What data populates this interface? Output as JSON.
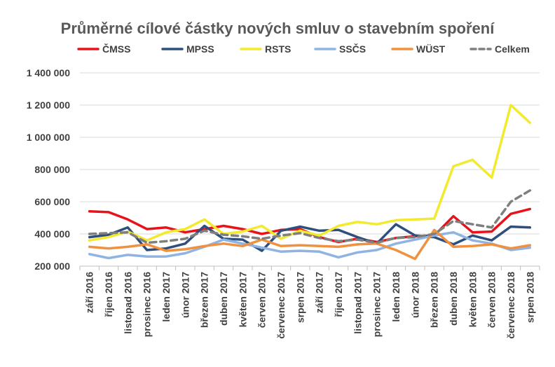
{
  "chart_data": {
    "type": "line",
    "title": "Průměrné cílové částky nových smluv o stavebním spoření",
    "xlabel": "",
    "ylabel": "",
    "ylim": [
      200000,
      1400000
    ],
    "yticks": [
      200000,
      400000,
      600000,
      800000,
      1000000,
      1200000,
      1400000
    ],
    "ytick_labels": [
      "200 000",
      "400 000",
      "600 000",
      "800 000",
      "1 000 000",
      "1 200 000",
      "1 400 000"
    ],
    "grid": true,
    "legend_position": "top",
    "categories": [
      "září 2016",
      "říjen 2016",
      "listopad 2016",
      "prosinec 2016",
      "leden 2017",
      "únor 2017",
      "březen 2017",
      "duben 2017",
      "květen 2017",
      "červen 2017",
      "červenec 2017",
      "srpen 2017",
      "září 2017",
      "říjen 2017",
      "listopad 2017",
      "prosinec 2017",
      "leden 2018",
      "únor 2018",
      "březen 2018",
      "duben 2018",
      "květen 2018",
      "červen 2018",
      "červenec 2018",
      "srpen 2018"
    ],
    "series": [
      {
        "name": "ČMSS",
        "color": "#e8121a",
        "dashed": false,
        "values": [
          540000,
          535000,
          490000,
          430000,
          440000,
          410000,
          430000,
          450000,
          430000,
          400000,
          425000,
          430000,
          380000,
          350000,
          370000,
          350000,
          375000,
          385000,
          390000,
          510000,
          410000,
          415000,
          525000,
          555000
        ]
      },
      {
        "name": "MPSS",
        "color": "#2e4f7e",
        "dashed": false,
        "values": [
          380000,
          395000,
          440000,
          300000,
          310000,
          340000,
          450000,
          370000,
          365000,
          295000,
          420000,
          445000,
          420000,
          425000,
          380000,
          340000,
          460000,
          390000,
          380000,
          335000,
          390000,
          360000,
          445000,
          440000
        ]
      },
      {
        "name": "RSTS",
        "color": "#f2ea2e",
        "dashed": false,
        "values": [
          360000,
          380000,
          415000,
          360000,
          410000,
          430000,
          490000,
          400000,
          415000,
          450000,
          370000,
          420000,
          390000,
          450000,
          475000,
          460000,
          485000,
          490000,
          495000,
          820000,
          860000,
          750000,
          1200000,
          1090000
        ]
      },
      {
        "name": "SSČS",
        "color": "#8fb4e3",
        "dashed": false,
        "values": [
          275000,
          250000,
          270000,
          260000,
          260000,
          280000,
          320000,
          365000,
          340000,
          315000,
          290000,
          295000,
          290000,
          255000,
          285000,
          300000,
          340000,
          365000,
          390000,
          410000,
          360000,
          340000,
          300000,
          315000
        ]
      },
      {
        "name": "WÜST",
        "color": "#f0913f",
        "dashed": false,
        "values": [
          320000,
          310000,
          320000,
          335000,
          295000,
          305000,
          325000,
          340000,
          325000,
          365000,
          325000,
          330000,
          325000,
          320000,
          335000,
          340000,
          300000,
          245000,
          425000,
          320000,
          325000,
          335000,
          310000,
          330000
        ]
      },
      {
        "name": "Celkem",
        "color": "#7f7f7f",
        "dashed": true,
        "values": [
          400000,
          405000,
          410000,
          345000,
          355000,
          370000,
          420000,
          395000,
          385000,
          370000,
          390000,
          405000,
          375000,
          355000,
          365000,
          345000,
          375000,
          380000,
          400000,
          480000,
          460000,
          440000,
          600000,
          670000
        ]
      }
    ]
  }
}
